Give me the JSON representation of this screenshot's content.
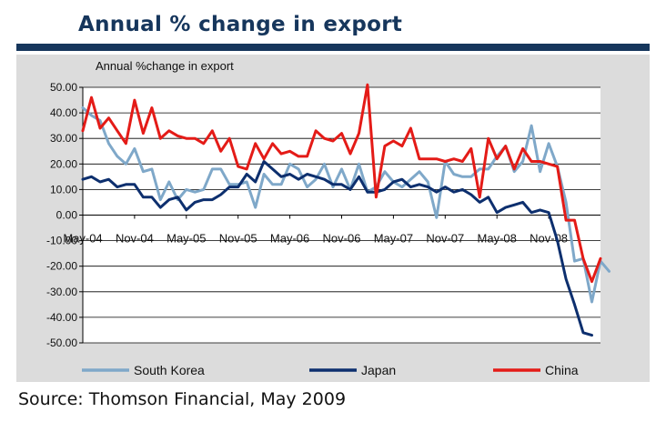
{
  "page": {
    "title": "Annual % change in export",
    "source": "Source: Thomson Financial, May 2009"
  },
  "colors": {
    "title": "#16365c",
    "panel_bg": "#dcdcdc",
    "plot_bg": "#ffffff",
    "south_korea": "#7fa8c9",
    "japan": "#0d2f6e",
    "china": "#e41b17"
  },
  "chart_data": {
    "type": "line",
    "title": "Annual %change in export",
    "xlabel": "",
    "ylabel": "",
    "ylim": [
      -50,
      50
    ],
    "y_ticks": [
      "50.00",
      "40.00",
      "30.00",
      "20.00",
      "10.00",
      "0.00",
      "-10.00",
      "-20.00",
      "-30.00",
      "-40.00",
      "-50.00"
    ],
    "x_tick_labels": [
      "May-04",
      "Nov-04",
      "May-05",
      "Nov-05",
      "May-06",
      "Nov-06",
      "May-07",
      "Nov-07",
      "May-08",
      "Nov-08"
    ],
    "x_start": "May-04",
    "x_end": "Apr-09",
    "grid": "horizontal",
    "legend_position": "bottom",
    "series": [
      {
        "name": "South Korea",
        "color": "#7fa8c9",
        "values": [
          42,
          39,
          37,
          28,
          23,
          20,
          26,
          17,
          18,
          6,
          13,
          6,
          10,
          9,
          10,
          18,
          18,
          12,
          12,
          13,
          3,
          16,
          12,
          12,
          20,
          18,
          11,
          14,
          20,
          11,
          18,
          10,
          20,
          9,
          11,
          17,
          13,
          11,
          14,
          17,
          13,
          -1,
          21,
          16,
          15,
          15,
          18,
          18,
          23,
          27,
          17,
          21,
          35,
          17,
          28,
          19,
          5,
          -18,
          -17,
          -34,
          -18,
          -22
        ]
      },
      {
        "name": "Japan",
        "color": "#0d2f6e",
        "values": [
          14,
          15,
          13,
          14,
          11,
          12,
          12,
          7,
          7,
          3,
          6,
          7,
          2,
          5,
          6,
          6,
          8,
          11,
          11,
          16,
          13,
          21,
          18,
          15,
          16,
          14,
          16,
          15,
          14,
          12,
          12,
          10,
          15,
          9,
          9,
          10,
          13,
          14,
          11,
          12,
          11,
          9,
          11,
          9,
          10,
          8,
          5,
          7,
          1,
          3,
          4,
          5,
          1,
          2,
          1,
          -10,
          -25,
          -35,
          -46,
          -47
        ]
      },
      {
        "name": "China",
        "color": "#e41b17",
        "values": [
          33,
          46,
          34,
          38,
          33,
          28,
          45,
          32,
          42,
          30,
          33,
          31,
          30,
          30,
          28,
          33,
          25,
          30,
          19,
          18,
          28,
          22,
          28,
          24,
          25,
          23,
          23,
          33,
          30,
          29,
          32,
          24,
          32,
          51,
          7,
          27,
          29,
          27,
          34,
          22,
          22,
          22,
          21,
          22,
          21,
          26,
          7,
          30,
          22,
          27,
          18,
          26,
          21,
          21,
          20,
          19,
          -2,
          -2,
          -17,
          -26,
          -17
        ]
      }
    ]
  }
}
